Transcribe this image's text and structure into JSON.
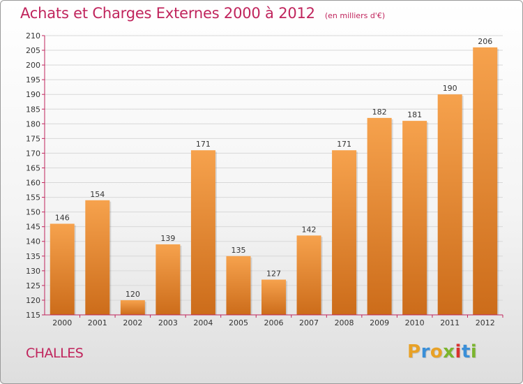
{
  "header": {
    "title": "Achats et Charges Externes 2000 à 2012",
    "unit": "(en milliers d'€)"
  },
  "footer": {
    "place": "CHALLES",
    "logo_letters": [
      "P",
      "r",
      "o",
      "x",
      "i",
      "t",
      "i"
    ],
    "logo_colors": [
      "#e8a126",
      "#3a8fd8",
      "#e8a126",
      "#7bb52e",
      "#d9322e",
      "#3a8fd8",
      "#7bb52e"
    ]
  },
  "colors": {
    "bar_top": "#f6a24d",
    "bar_bottom": "#cc6c1a",
    "axis": "#c0245c",
    "grid": "#d8d8d8",
    "text": "#333333"
  },
  "chart_data": {
    "type": "bar",
    "title": "Achats et Charges Externes 2000 à 2012",
    "subtitle": "(en milliers d'€)",
    "xlabel": "",
    "ylabel": "",
    "categories": [
      "2000",
      "2001",
      "2002",
      "2003",
      "2004",
      "2005",
      "2006",
      "2007",
      "2008",
      "2009",
      "2010",
      "2011",
      "2012"
    ],
    "values": [
      146,
      154,
      120,
      139,
      171,
      135,
      127,
      142,
      171,
      182,
      181,
      190,
      206
    ],
    "ylim": [
      115,
      210
    ],
    "yticks": [
      115,
      120,
      125,
      130,
      135,
      140,
      145,
      150,
      155,
      160,
      165,
      170,
      175,
      180,
      185,
      190,
      195,
      200,
      205,
      210
    ],
    "grid": true,
    "legend": "none"
  }
}
